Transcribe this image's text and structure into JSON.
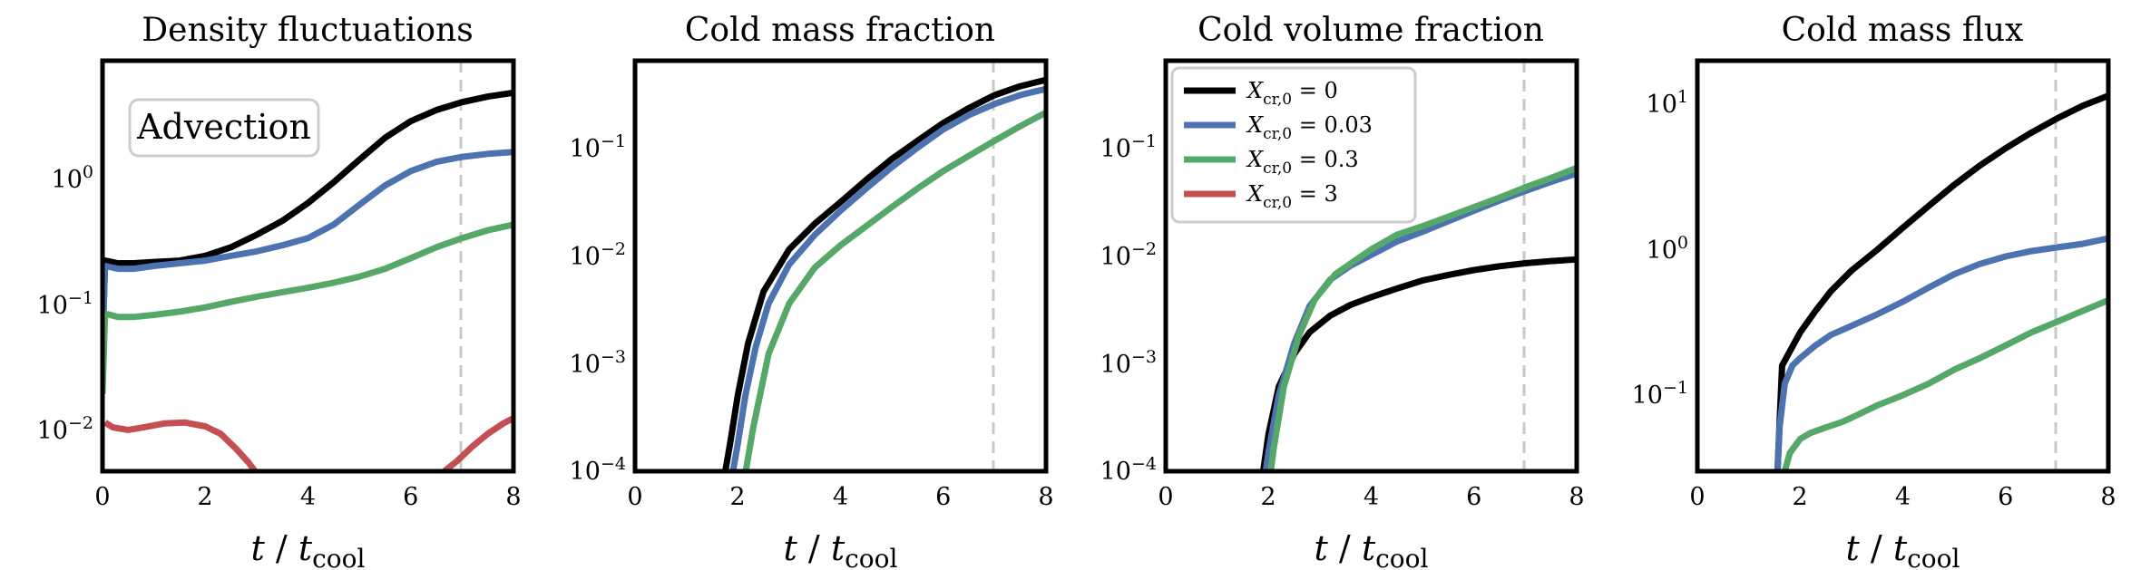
{
  "colors": {
    "series": [
      "#000000",
      "#4c72b0",
      "#55a868",
      "#c44e52"
    ],
    "marker": "#c8c8c8",
    "frame": "#000000"
  },
  "chart_data": [
    {
      "type": "line",
      "title": "Density fluctuations",
      "xlabel": "t / t_cool",
      "xlabel_parts": {
        "t": "t",
        "slash": "/",
        "tcool": "t",
        "sub": "cool"
      },
      "yscale": "log",
      "xlim": [
        0,
        8
      ],
      "ylim": [
        0.005,
        8
      ],
      "xticks": [
        0,
        2,
        4,
        6,
        8
      ],
      "yticks": [
        {
          "value": 0.01,
          "base": "10",
          "exp": "−2"
        },
        {
          "value": 0.1,
          "base": "10",
          "exp": "−1"
        },
        {
          "value": 1,
          "base": "10",
          "exp": "0"
        }
      ],
      "vline": 7,
      "annotation": "Advection",
      "series": [
        {
          "name": "X_cr,0 = 0",
          "x": [
            0,
            0.05,
            0.3,
            0.6,
            1,
            1.5,
            2,
            2.5,
            3,
            3.5,
            4,
            4.5,
            5,
            5.5,
            6,
            6.5,
            7,
            7.5,
            8
          ],
          "y": [
            0.05,
            0.22,
            0.21,
            0.21,
            0.215,
            0.22,
            0.24,
            0.28,
            0.35,
            0.45,
            0.62,
            0.9,
            1.35,
            2.0,
            2.7,
            3.3,
            3.8,
            4.2,
            4.5
          ]
        },
        {
          "name": "X_cr,0 = 0.03",
          "x": [
            0,
            0.05,
            0.3,
            0.6,
            1,
            1.5,
            2,
            2.5,
            3,
            3.5,
            4,
            4.5,
            5,
            5.5,
            6,
            6.5,
            7,
            7.5,
            8
          ],
          "y": [
            0.05,
            0.2,
            0.19,
            0.19,
            0.2,
            0.21,
            0.22,
            0.24,
            0.26,
            0.29,
            0.33,
            0.42,
            0.6,
            0.85,
            1.1,
            1.3,
            1.42,
            1.5,
            1.55
          ]
        },
        {
          "name": "X_cr,0 = 0.3",
          "x": [
            0,
            0.05,
            0.3,
            0.6,
            1,
            1.5,
            2,
            2.5,
            3,
            3.5,
            4,
            4.5,
            5,
            5.5,
            6,
            6.5,
            7,
            7.5,
            8
          ],
          "y": [
            0.02,
            0.085,
            0.08,
            0.08,
            0.083,
            0.088,
            0.095,
            0.105,
            0.115,
            0.125,
            0.135,
            0.148,
            0.165,
            0.19,
            0.23,
            0.28,
            0.33,
            0.38,
            0.42
          ]
        },
        {
          "name": "X_cr,0 = 3",
          "x": [
            0.05,
            0.2,
            0.5,
            0.8,
            1.2,
            1.6,
            2,
            2.3,
            2.6,
            2.85,
            3.0,
            6.6,
            6.9,
            7.2,
            7.5,
            7.8,
            8
          ],
          "y": [
            0.012,
            0.011,
            0.0105,
            0.011,
            0.0118,
            0.012,
            0.0112,
            0.0098,
            0.0075,
            0.0058,
            0.0048,
            0.0048,
            0.006,
            0.0078,
            0.0098,
            0.0118,
            0.013
          ]
        }
      ]
    },
    {
      "type": "line",
      "title": "Cold mass fraction",
      "xlabel": "t / t_cool",
      "xlabel_parts": {
        "t": "t",
        "slash": "/",
        "tcool": "t",
        "sub": "cool"
      },
      "yscale": "log",
      "xlim": [
        0,
        8
      ],
      "ylim": [
        0.0001,
        0.6
      ],
      "xticks": [
        0,
        2,
        4,
        6,
        8
      ],
      "yticks": [
        {
          "value": 0.0001,
          "base": "10",
          "exp": "−4"
        },
        {
          "value": 0.001,
          "base": "10",
          "exp": "−3"
        },
        {
          "value": 0.01,
          "base": "10",
          "exp": "−2"
        },
        {
          "value": 0.1,
          "base": "10",
          "exp": "−1"
        }
      ],
      "vline": 7,
      "series": [
        {
          "name": "X_cr,0 = 0",
          "x": [
            1.7,
            1.85,
            2.0,
            2.2,
            2.5,
            3.0,
            3.5,
            4.0,
            4.5,
            5.0,
            5.5,
            6.0,
            6.5,
            7.0,
            7.5,
            8.0
          ],
          "y": [
            7e-05,
            0.00018,
            0.0005,
            0.0015,
            0.0045,
            0.011,
            0.019,
            0.03,
            0.048,
            0.075,
            0.11,
            0.16,
            0.22,
            0.29,
            0.35,
            0.4
          ]
        },
        {
          "name": "X_cr,0 = 0.03",
          "x": [
            1.85,
            2.0,
            2.15,
            2.35,
            2.6,
            3.0,
            3.5,
            4.0,
            4.5,
            5.0,
            5.5,
            6.0,
            6.5,
            7.0,
            7.5,
            8.0
          ],
          "y": [
            7e-05,
            0.00018,
            0.0005,
            0.0014,
            0.0035,
            0.008,
            0.015,
            0.025,
            0.04,
            0.063,
            0.095,
            0.14,
            0.19,
            0.24,
            0.29,
            0.33
          ]
        },
        {
          "name": "X_cr,0 = 0.3",
          "x": [
            2.1,
            2.3,
            2.6,
            3.0,
            3.5,
            4.0,
            4.5,
            5.0,
            5.5,
            6.0,
            6.5,
            7.0,
            7.5,
            8.0
          ],
          "y": [
            7e-05,
            0.00025,
            0.0012,
            0.0035,
            0.0075,
            0.012,
            0.018,
            0.027,
            0.04,
            0.058,
            0.08,
            0.11,
            0.15,
            0.2
          ]
        }
      ]
    },
    {
      "type": "line",
      "title": "Cold volume fraction",
      "xlabel": "t / t_cool",
      "xlabel_parts": {
        "t": "t",
        "slash": "/",
        "tcool": "t",
        "sub": "cool"
      },
      "yscale": "log",
      "xlim": [
        0,
        8
      ],
      "ylim": [
        0.0001,
        0.6
      ],
      "xticks": [
        0,
        2,
        4,
        6,
        8
      ],
      "yticks": [
        {
          "value": 0.0001,
          "base": "10",
          "exp": "−4"
        },
        {
          "value": 0.001,
          "base": "10",
          "exp": "−3"
        },
        {
          "value": 0.01,
          "base": "10",
          "exp": "−2"
        },
        {
          "value": 0.1,
          "base": "10",
          "exp": "−1"
        }
      ],
      "vline": 7,
      "legend": {
        "position": "top-left",
        "entries": [
          {
            "main": "X",
            "sub": "cr,0",
            "value": " = 0"
          },
          {
            "main": "X",
            "sub": "cr,0",
            "value": " = 0.03"
          },
          {
            "main": "X",
            "sub": "cr,0",
            "value": " = 0.3"
          },
          {
            "main": "X",
            "sub": "cr,0",
            "value": " = 3"
          }
        ]
      },
      "series": [
        {
          "name": "X_cr,0 = 0",
          "x": [
            1.85,
            2.0,
            2.2,
            2.5,
            2.8,
            3.2,
            3.6,
            4.0,
            4.5,
            5.0,
            5.5,
            6.0,
            6.5,
            7.0,
            7.5,
            8.0
          ],
          "y": [
            7e-05,
            0.00022,
            0.0006,
            0.0012,
            0.0019,
            0.0027,
            0.0034,
            0.004,
            0.0048,
            0.0057,
            0.0064,
            0.0071,
            0.0077,
            0.0082,
            0.0086,
            0.0089
          ]
        },
        {
          "name": "X_cr,0 = 0.03",
          "x": [
            1.9,
            2.0,
            2.2,
            2.5,
            2.8,
            3.2,
            3.6,
            4.0,
            4.5,
            5.0,
            5.5,
            6.0,
            6.5,
            7.0,
            7.5,
            8.0
          ],
          "y": [
            7e-05,
            0.00015,
            0.0005,
            0.0015,
            0.0033,
            0.0058,
            0.0078,
            0.0098,
            0.013,
            0.016,
            0.02,
            0.025,
            0.031,
            0.038,
            0.046,
            0.055
          ]
        },
        {
          "name": "X_cr,0 = 0.3",
          "x": [
            2.0,
            2.1,
            2.3,
            2.6,
            2.9,
            3.3,
            3.7,
            4.0,
            4.5,
            5.0,
            5.5,
            6.0,
            6.5,
            7.0,
            7.5,
            8.0
          ],
          "y": [
            7e-05,
            0.00016,
            0.0006,
            0.0018,
            0.0038,
            0.0065,
            0.0088,
            0.011,
            0.015,
            0.018,
            0.022,
            0.027,
            0.033,
            0.041,
            0.05,
            0.062
          ]
        }
      ]
    },
    {
      "type": "line",
      "title": "Cold mass flux",
      "xlabel": "t / t_cool",
      "xlabel_parts": {
        "t": "t",
        "slash": "/",
        "tcool": "t",
        "sub": "cool"
      },
      "yscale": "log",
      "xlim": [
        0,
        8
      ],
      "ylim": [
        0.03,
        20
      ],
      "xticks": [
        0,
        2,
        4,
        6,
        8
      ],
      "yticks": [
        {
          "value": 0.1,
          "base": "10",
          "exp": "−1"
        },
        {
          "value": 1,
          "base": "10",
          "exp": "0"
        },
        {
          "value": 10,
          "base": "10",
          "exp": "1"
        }
      ],
      "vline": 7,
      "series": [
        {
          "name": "X_cr,0 = 0",
          "x": [
            1.55,
            1.65,
            1.8,
            2.0,
            2.3,
            2.6,
            3.0,
            3.5,
            4.0,
            4.5,
            5.0,
            5.5,
            6.0,
            6.5,
            7.0,
            7.5,
            8.0
          ],
          "y": [
            0.025,
            0.16,
            0.2,
            0.27,
            0.38,
            0.52,
            0.72,
            1.0,
            1.42,
            2.0,
            2.8,
            3.8,
            5.0,
            6.4,
            8.0,
            9.8,
            11.5
          ]
        },
        {
          "name": "X_cr,0 = 0.03",
          "x": [
            1.55,
            1.6,
            1.7,
            1.85,
            2.0,
            2.3,
            2.6,
            3.0,
            3.5,
            4.0,
            4.5,
            5.0,
            5.5,
            6.0,
            6.5,
            7.0,
            7.5,
            8.0
          ],
          "y": [
            0.025,
            0.06,
            0.12,
            0.16,
            0.18,
            0.22,
            0.26,
            0.3,
            0.36,
            0.44,
            0.55,
            0.68,
            0.8,
            0.9,
            0.98,
            1.04,
            1.1,
            1.2
          ]
        },
        {
          "name": "X_cr,0 = 0.3",
          "x": [
            1.6,
            1.7,
            1.8,
            2.0,
            2.2,
            2.5,
            2.8,
            3.0,
            3.5,
            4.0,
            4.5,
            5.0,
            5.5,
            6.0,
            6.5,
            7.0,
            7.5,
            8.0
          ],
          "y": [
            0.025,
            0.03,
            0.04,
            0.05,
            0.055,
            0.06,
            0.065,
            0.07,
            0.085,
            0.1,
            0.12,
            0.15,
            0.18,
            0.22,
            0.27,
            0.32,
            0.38,
            0.45
          ]
        }
      ]
    }
  ]
}
